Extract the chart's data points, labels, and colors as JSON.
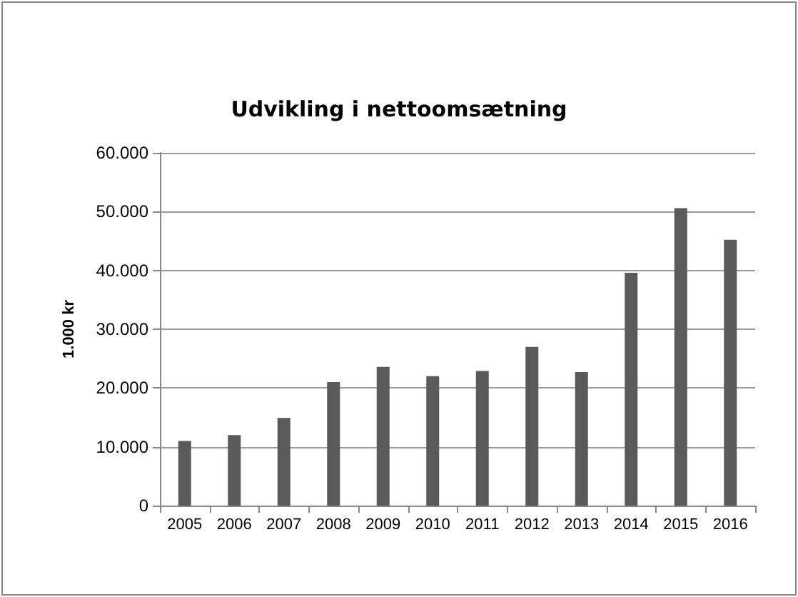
{
  "chart_data": {
    "type": "bar",
    "title": "Udvikling i nettoomsætning",
    "ylabel": "1.000 kr",
    "categories": [
      "2005",
      "2006",
      "2007",
      "2008",
      "2009",
      "2010",
      "2011",
      "2012",
      "2013",
      "2014",
      "2015",
      "2016"
    ],
    "values": [
      11000,
      12000,
      14900,
      21000,
      23600,
      22000,
      22900,
      27000,
      22700,
      39600,
      50600,
      45200
    ],
    "color": "#5a5a5a",
    "ylim": [
      0,
      60000
    ],
    "yticks": [
      0,
      {
        "value": 10000,
        "label": "10.000"
      },
      {
        "value": 20000,
        "label": "20.000"
      },
      {
        "value": 30000,
        "label": "30.000"
      },
      {
        "value": 40000,
        "label": "40.000"
      },
      {
        "value": 50000,
        "label": "50.000"
      },
      {
        "value": 60000,
        "label": "60.000"
      }
    ],
    "grid": "y"
  }
}
